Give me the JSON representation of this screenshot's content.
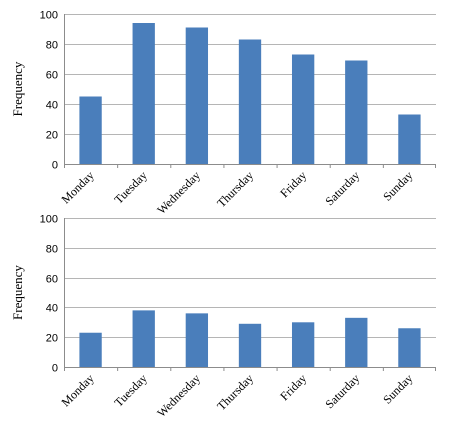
{
  "chart_data": [
    {
      "type": "bar",
      "categories": [
        "Monday",
        "Tuesday",
        "Wednesday",
        "Thursday",
        "Friday",
        "Saturday",
        "Sunday"
      ],
      "values": [
        45,
        94,
        91,
        83,
        73,
        69,
        33
      ],
      "title": "",
      "xlabel": "",
      "ylabel": "Frequency",
      "ylim": [
        0,
        100
      ],
      "yticks": [
        0,
        20,
        40,
        60,
        80,
        100
      ],
      "grid": true,
      "bar_color": "#4a7ebb"
    },
    {
      "type": "bar",
      "categories": [
        "Monday",
        "Tuesday",
        "Wednesday",
        "Thursday",
        "Friday",
        "Saturday",
        "Sunday"
      ],
      "values": [
        23,
        38,
        36,
        29,
        30,
        33,
        26
      ],
      "title": "",
      "xlabel": "",
      "ylabel": "Frequency",
      "ylim": [
        0,
        100
      ],
      "yticks": [
        0,
        20,
        40,
        60,
        80,
        100
      ],
      "grid": true,
      "bar_color": "#4a7ebb"
    }
  ]
}
